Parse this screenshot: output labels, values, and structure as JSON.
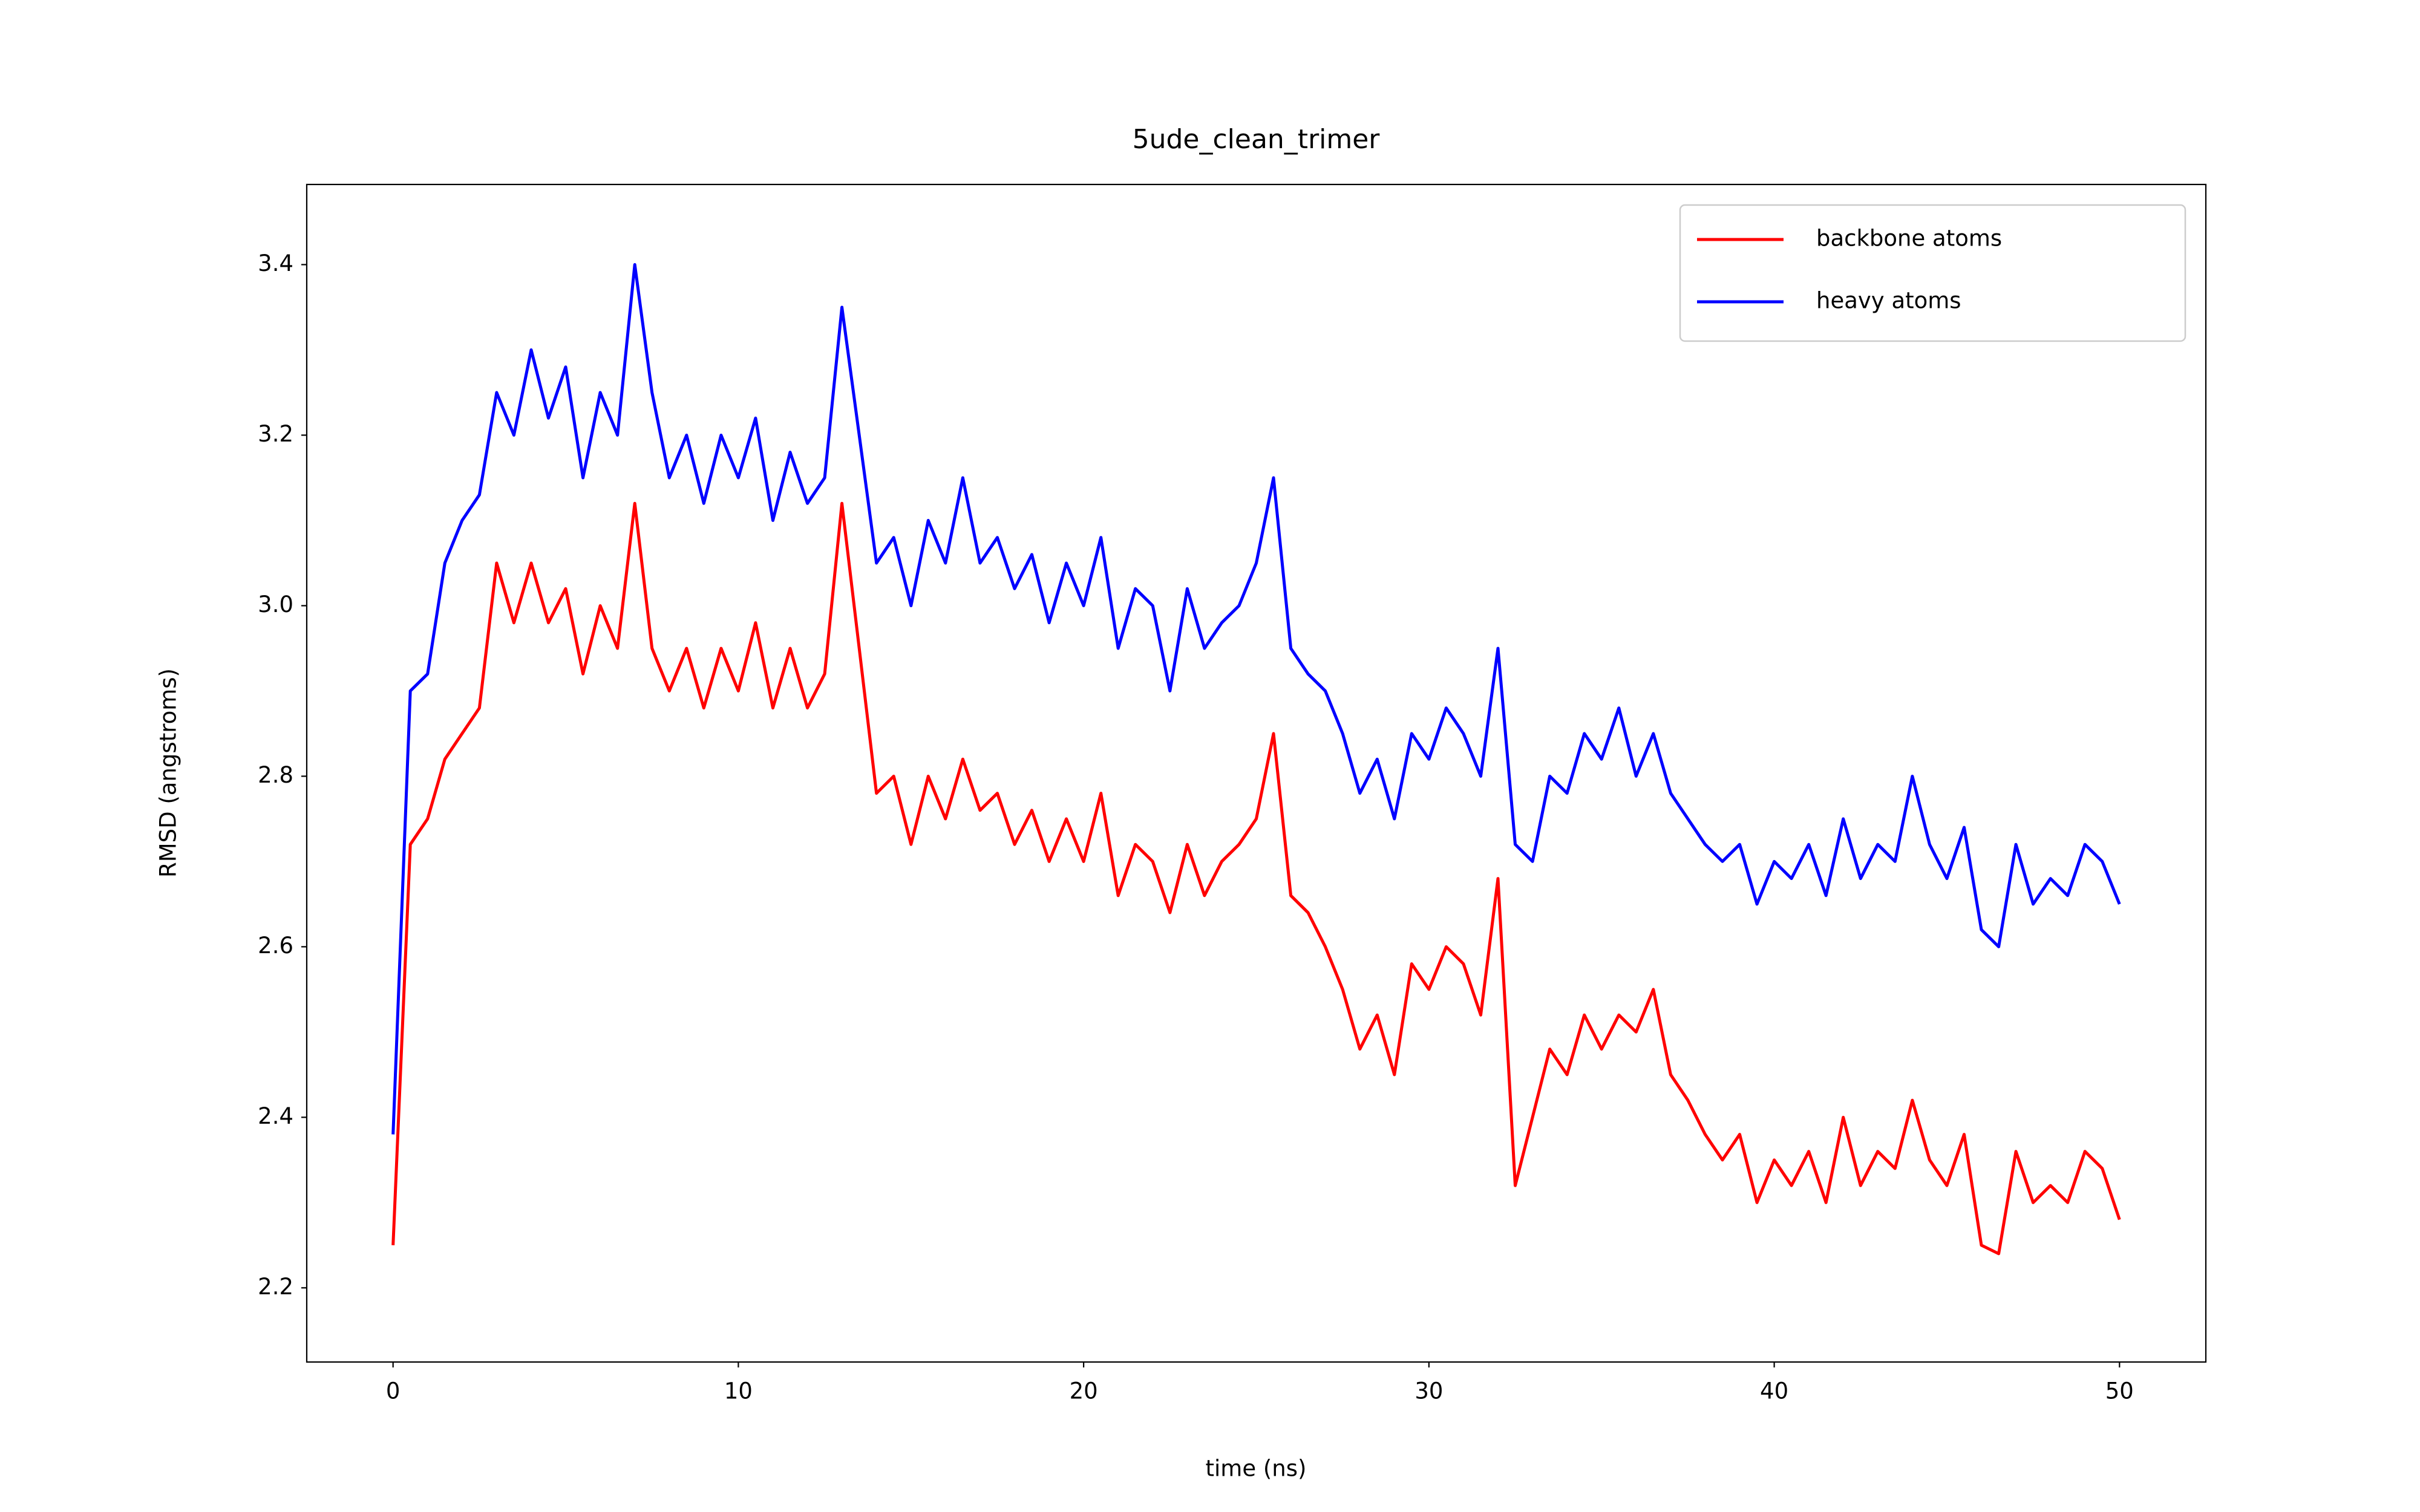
{
  "chart_data": {
    "type": "line",
    "title": "5ude_clean_trimer",
    "xlabel": "time (ns)",
    "ylabel": "RMSD (angstroms)",
    "x": [
      0,
      0.5,
      1,
      1.5,
      2,
      2.5,
      3,
      3.5,
      4,
      4.5,
      5,
      5.5,
      6,
      6.5,
      7,
      7.5,
      8,
      8.5,
      9,
      9.5,
      10,
      10.5,
      11,
      11.5,
      12,
      12.5,
      13,
      13.5,
      14,
      14.5,
      15,
      15.5,
      16,
      16.5,
      17,
      17.5,
      18,
      18.5,
      19,
      19.5,
      20,
      20.5,
      21,
      21.5,
      22,
      22.5,
      23,
      23.5,
      24,
      24.5,
      25,
      25.5,
      26,
      26.5,
      27,
      27.5,
      28,
      28.5,
      29,
      29.5,
      30,
      30.5,
      31,
      31.5,
      32,
      32.5,
      33,
      33.5,
      34,
      34.5,
      35,
      35.5,
      36,
      36.5,
      37,
      37.5,
      38,
      38.5,
      39,
      39.5,
      40,
      40.5,
      41,
      41.5,
      42,
      42.5,
      43,
      43.5,
      44,
      44.5,
      45,
      45.5,
      46,
      46.5,
      47,
      47.5,
      48,
      48.5,
      49,
      49.5,
      50
    ],
    "series": [
      {
        "name": "backbone atoms",
        "color": "#ff0000",
        "values": [
          2.25,
          2.72,
          2.75,
          2.82,
          2.85,
          2.88,
          3.05,
          2.98,
          3.05,
          2.98,
          3.02,
          2.92,
          3.0,
          2.95,
          3.12,
          2.95,
          2.9,
          2.95,
          2.88,
          2.95,
          2.9,
          2.98,
          2.88,
          2.95,
          2.88,
          2.92,
          3.12,
          2.95,
          2.78,
          2.8,
          2.72,
          2.8,
          2.75,
          2.82,
          2.76,
          2.78,
          2.72,
          2.76,
          2.7,
          2.75,
          2.7,
          2.78,
          2.66,
          2.72,
          2.7,
          2.64,
          2.72,
          2.66,
          2.7,
          2.72,
          2.75,
          2.85,
          2.66,
          2.64,
          2.6,
          2.55,
          2.48,
          2.52,
          2.45,
          2.58,
          2.55,
          2.6,
          2.58,
          2.52,
          2.68,
          2.32,
          2.4,
          2.48,
          2.45,
          2.52,
          2.48,
          2.52,
          2.5,
          2.55,
          2.45,
          2.42,
          2.38,
          2.35,
          2.38,
          2.3,
          2.35,
          2.32,
          2.36,
          2.3,
          2.4,
          2.32,
          2.36,
          2.34,
          2.42,
          2.35,
          2.32,
          2.38,
          2.25,
          2.24,
          2.36,
          2.3,
          2.32,
          2.3,
          2.36,
          2.34,
          2.28
        ]
      },
      {
        "name": "heavy atoms",
        "color": "#0000ff",
        "values": [
          2.38,
          2.9,
          2.92,
          3.05,
          3.1,
          3.13,
          3.25,
          3.2,
          3.3,
          3.22,
          3.28,
          3.15,
          3.25,
          3.2,
          3.4,
          3.25,
          3.15,
          3.2,
          3.12,
          3.2,
          3.15,
          3.22,
          3.1,
          3.18,
          3.12,
          3.15,
          3.35,
          3.2,
          3.05,
          3.08,
          3.0,
          3.1,
          3.05,
          3.15,
          3.05,
          3.08,
          3.02,
          3.06,
          2.98,
          3.05,
          3.0,
          3.08,
          2.95,
          3.02,
          3.0,
          2.9,
          3.02,
          2.95,
          2.98,
          3.0,
          3.05,
          3.15,
          2.95,
          2.92,
          2.9,
          2.85,
          2.78,
          2.82,
          2.75,
          2.85,
          2.82,
          2.88,
          2.85,
          2.8,
          2.95,
          2.72,
          2.7,
          2.8,
          2.78,
          2.85,
          2.82,
          2.88,
          2.8,
          2.85,
          2.78,
          2.75,
          2.72,
          2.7,
          2.72,
          2.65,
          2.7,
          2.68,
          2.72,
          2.66,
          2.75,
          2.68,
          2.72,
          2.7,
          2.8,
          2.72,
          2.68,
          2.74,
          2.62,
          2.6,
          2.72,
          2.65,
          2.68,
          2.66,
          2.72,
          2.7,
          2.65
        ]
      }
    ],
    "xlim": [
      -2.5,
      52.5
    ],
    "xticks": [
      0,
      10,
      20,
      30,
      40,
      50
    ],
    "ylim": [
      2.113,
      3.494
    ],
    "yticks": [
      {
        "value": 2.2,
        "label": "2.2"
      },
      {
        "value": 2.4,
        "label": "2.4"
      },
      {
        "value": 2.6,
        "label": "2.6"
      },
      {
        "value": 2.8,
        "label": "2.8"
      },
      {
        "value": 3.0,
        "label": "3.0"
      },
      {
        "value": 3.2,
        "label": "3.2"
      },
      {
        "value": 3.4,
        "label": "3.4"
      }
    ],
    "legend": "upper right",
    "grid": false
  }
}
